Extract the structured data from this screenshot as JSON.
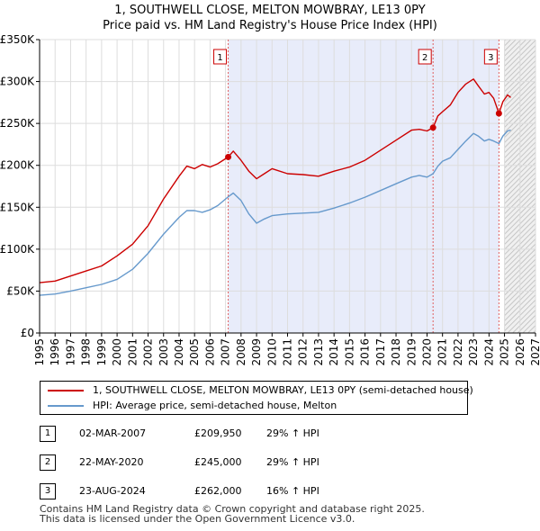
{
  "title_line1": "1, SOUTHWELL CLOSE, MELTON MOWBRAY, LE13 0PY",
  "title_line2": "Price paid vs. HM Land Registry's House Price Index (HPI)",
  "chart_data": {
    "type": "line",
    "xlim": [
      1995,
      2027
    ],
    "ylim": [
      0,
      350000
    ],
    "x_ticks": [
      "1995",
      "1996",
      "1997",
      "1998",
      "1999",
      "2000",
      "2001",
      "2002",
      "2003",
      "2004",
      "2005",
      "2006",
      "2007",
      "2008",
      "2009",
      "2010",
      "2011",
      "2012",
      "2013",
      "2014",
      "2015",
      "2016",
      "2017",
      "2018",
      "2019",
      "2020",
      "2021",
      "2022",
      "2023",
      "2024",
      "2025",
      "2026",
      "2027"
    ],
    "y_ticks": [
      {
        "value": 0,
        "label": "£0"
      },
      {
        "value": 50000,
        "label": "£50K"
      },
      {
        "value": 100000,
        "label": "£100K"
      },
      {
        "value": 150000,
        "label": "£150K"
      },
      {
        "value": 200000,
        "label": "£200K"
      },
      {
        "value": 250000,
        "label": "£250K"
      },
      {
        "value": 300000,
        "label": "£300K"
      },
      {
        "value": 350000,
        "label": "£350K"
      }
    ],
    "shaded_period": [
      2007.17,
      2024.64
    ],
    "forecast_from": 2025.0,
    "series": [
      {
        "name": "1, SOUTHWELL CLOSE, MELTON MOWBRAY, LE13 0PY (semi-detached house)",
        "color": "#cc0000",
        "points": [
          [
            1995.0,
            60000
          ],
          [
            1996.0,
            62000
          ],
          [
            1997.0,
            68000
          ],
          [
            1998.0,
            74000
          ],
          [
            1999.0,
            80000
          ],
          [
            2000.0,
            92000
          ],
          [
            2001.0,
            106000
          ],
          [
            2002.0,
            128000
          ],
          [
            2003.0,
            160000
          ],
          [
            2004.0,
            187000
          ],
          [
            2004.5,
            199000
          ],
          [
            2005.0,
            196000
          ],
          [
            2005.5,
            201000
          ],
          [
            2006.0,
            198000
          ],
          [
            2006.5,
            202000
          ],
          [
            2007.17,
            209950
          ],
          [
            2007.5,
            217000
          ],
          [
            2008.0,
            206000
          ],
          [
            2008.5,
            193000
          ],
          [
            2009.0,
            184000
          ],
          [
            2009.5,
            190000
          ],
          [
            2010.0,
            196000
          ],
          [
            2011.0,
            190000
          ],
          [
            2012.0,
            189000
          ],
          [
            2013.0,
            187000
          ],
          [
            2014.0,
            193000
          ],
          [
            2015.0,
            198000
          ],
          [
            2016.0,
            206000
          ],
          [
            2017.0,
            218000
          ],
          [
            2018.0,
            230000
          ],
          [
            2019.0,
            242000
          ],
          [
            2019.5,
            243000
          ],
          [
            2020.0,
            241000
          ],
          [
            2020.39,
            245000
          ],
          [
            2020.7,
            259000
          ],
          [
            2021.0,
            264000
          ],
          [
            2021.5,
            272000
          ],
          [
            2022.0,
            287000
          ],
          [
            2022.5,
            297000
          ],
          [
            2023.0,
            303000
          ],
          [
            2023.3,
            295000
          ],
          [
            2023.7,
            285000
          ],
          [
            2024.0,
            287000
          ],
          [
            2024.3,
            280000
          ],
          [
            2024.64,
            262000
          ],
          [
            2024.9,
            276000
          ],
          [
            2025.2,
            284000
          ],
          [
            2025.4,
            281000
          ]
        ]
      },
      {
        "name": "HPI: Average price, semi-detached house, Melton",
        "color": "#6699cc",
        "points": [
          [
            1995.0,
            45000
          ],
          [
            1996.0,
            46500
          ],
          [
            1997.0,
            50000
          ],
          [
            1998.0,
            54000
          ],
          [
            1999.0,
            58000
          ],
          [
            2000.0,
            64000
          ],
          [
            2001.0,
            76000
          ],
          [
            2002.0,
            95000
          ],
          [
            2003.0,
            118000
          ],
          [
            2004.0,
            138000
          ],
          [
            2004.5,
            146000
          ],
          [
            2005.0,
            146000
          ],
          [
            2005.5,
            144000
          ],
          [
            2006.0,
            147000
          ],
          [
            2006.5,
            152000
          ],
          [
            2007.17,
            162500
          ],
          [
            2007.5,
            167000
          ],
          [
            2008.0,
            158000
          ],
          [
            2008.5,
            142000
          ],
          [
            2009.0,
            131000
          ],
          [
            2009.5,
            136000
          ],
          [
            2010.0,
            140000
          ],
          [
            2011.0,
            142000
          ],
          [
            2012.0,
            143000
          ],
          [
            2013.0,
            144000
          ],
          [
            2014.0,
            149000
          ],
          [
            2015.0,
            155000
          ],
          [
            2016.0,
            162000
          ],
          [
            2017.0,
            170000
          ],
          [
            2018.0,
            178000
          ],
          [
            2019.0,
            186000
          ],
          [
            2019.5,
            188000
          ],
          [
            2020.0,
            186000
          ],
          [
            2020.39,
            190000
          ],
          [
            2020.7,
            199000
          ],
          [
            2021.0,
            205000
          ],
          [
            2021.5,
            209000
          ],
          [
            2022.0,
            219000
          ],
          [
            2022.5,
            229000
          ],
          [
            2023.0,
            238000
          ],
          [
            2023.3,
            235000
          ],
          [
            2023.7,
            229000
          ],
          [
            2024.0,
            231000
          ],
          [
            2024.3,
            229000
          ],
          [
            2024.64,
            226000
          ],
          [
            2024.9,
            235000
          ],
          [
            2025.2,
            241000
          ],
          [
            2025.4,
            242000
          ]
        ]
      }
    ],
    "sales": [
      {
        "id": "1",
        "x": 2007.17,
        "y": 209950
      },
      {
        "id": "2",
        "x": 2020.39,
        "y": 245000
      },
      {
        "id": "3",
        "x": 2024.64,
        "y": 262000
      }
    ]
  },
  "legend": {
    "property_label": "1, SOUTHWELL CLOSE, MELTON MOWBRAY, LE13 0PY (semi-detached house)",
    "hpi_label": "HPI: Average price, semi-detached house, Melton",
    "property_color": "#cc0000",
    "hpi_color": "#6699cc"
  },
  "sales_table": [
    {
      "num": "1",
      "date": "02-MAR-2007",
      "price": "£209,950",
      "hpi": "29% ↑ HPI"
    },
    {
      "num": "2",
      "date": "22-MAY-2020",
      "price": "£245,000",
      "hpi": "29% ↑ HPI"
    },
    {
      "num": "3",
      "date": "23-AUG-2024",
      "price": "£262,000",
      "hpi": "16% ↑ HPI"
    }
  ],
  "footer_line1": "Contains HM Land Registry data © Crown copyright and database right 2025.",
  "footer_line2": "This data is licensed under the Open Government Licence v3.0."
}
